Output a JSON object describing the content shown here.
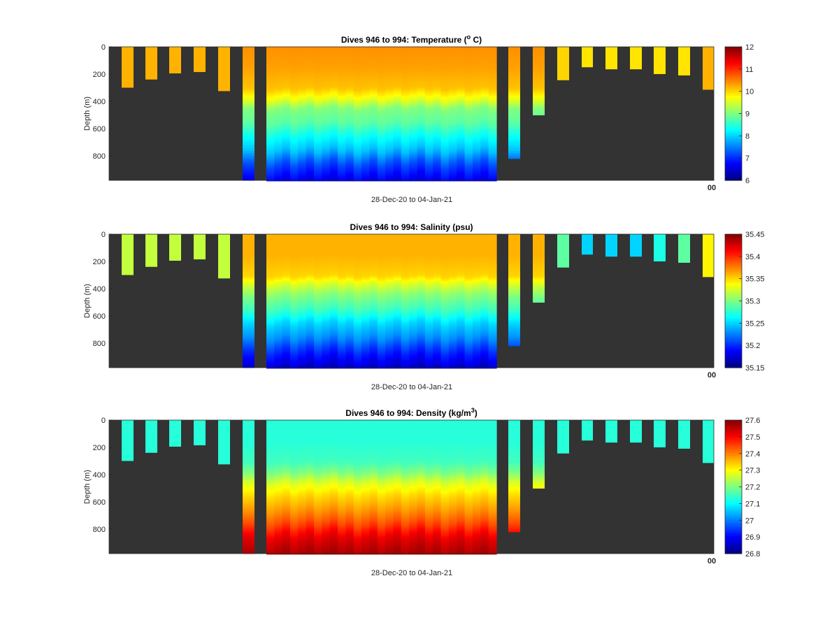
{
  "chart_data": [
    {
      "type": "heatmap",
      "title_pre": "Dives 946 to 994: Temperature (",
      "title_sup": "o",
      "title_post": " C)",
      "variable": "temperature",
      "xlabel": "28-Dec-20 to 04-Jan-21",
      "ylabel": "Depth (m)",
      "ylim": [
        0,
        980
      ],
      "yticks": [
        "0",
        "200",
        "400",
        "600",
        "800"
      ],
      "corner_label": "00",
      "clim": [
        6,
        12
      ],
      "cticks": [
        "6",
        "7",
        "8",
        "9",
        "10",
        "11",
        "12"
      ],
      "colormap": "jet",
      "background": "#333333"
    },
    {
      "type": "heatmap",
      "title_pre": "Dives 946 to 994: Salinity (psu)",
      "title_sup": "",
      "title_post": "",
      "variable": "salinity",
      "xlabel": "28-Dec-20 to 04-Jan-21",
      "ylabel": "Depth (m)",
      "ylim": [
        0,
        980
      ],
      "yticks": [
        "0",
        "200",
        "400",
        "600",
        "800"
      ],
      "corner_label": "00",
      "clim": [
        35.15,
        35.45
      ],
      "cticks": [
        "35.15",
        "35.2",
        "35.25",
        "35.3",
        "35.35",
        "35.4",
        "35.45"
      ],
      "colormap": "jet",
      "background": "#333333"
    },
    {
      "type": "heatmap",
      "title_pre": "Dives 946 to 994: Density (kg/m",
      "title_sup": "3",
      "title_post": ")",
      "variable": "density",
      "xlabel": "28-Dec-20 to 04-Jan-21",
      "ylabel": "Depth (m)",
      "ylim": [
        0,
        980
      ],
      "yticks": [
        "0",
        "200",
        "400",
        "600",
        "800"
      ],
      "corner_label": "00",
      "clim": [
        26.8,
        27.6
      ],
      "cticks": [
        "26.8",
        "26.9",
        "27",
        "27.1",
        "27.2",
        "27.3",
        "27.4",
        "27.5",
        "27.6"
      ],
      "colormap": "jet",
      "background": "#333333"
    }
  ],
  "dives": [
    {
      "depth": 300,
      "temperature": 10.2,
      "salinity": 35.32,
      "density": 27.13
    },
    {
      "depth": 240,
      "temperature": 10.2,
      "salinity": 35.32,
      "density": 27.13
    },
    {
      "depth": 195,
      "temperature": 10.2,
      "salinity": 35.32,
      "density": 27.13
    },
    {
      "depth": 185,
      "temperature": 10.2,
      "salinity": 35.32,
      "density": 27.13
    },
    {
      "depth": 325,
      "temperature": 10.2,
      "salinity": 35.32,
      "density": 27.13
    },
    {
      "depth": 980,
      "temperature": 10.2,
      "salinity": 35.34,
      "density": 27.13,
      "profile": true
    },
    {
      "depth": 980,
      "profile": true,
      "main": true
    },
    {
      "depth": 820,
      "temperature": 10.2,
      "salinity": 35.34,
      "density": 27.13,
      "profile": true
    },
    {
      "depth": 500,
      "temperature": 10.2,
      "salinity": 35.34,
      "density": 27.13,
      "profile": true
    },
    {
      "depth": 245,
      "temperature": 10.0,
      "salinity": 35.29,
      "density": 27.13
    },
    {
      "depth": 150,
      "temperature": 9.9,
      "salinity": 35.25,
      "density": 27.13
    },
    {
      "depth": 165,
      "temperature": 9.9,
      "salinity": 35.25,
      "density": 27.13
    },
    {
      "depth": 165,
      "temperature": 9.9,
      "salinity": 35.25,
      "density": 27.13
    },
    {
      "depth": 200,
      "temperature": 9.9,
      "salinity": 35.27,
      "density": 27.13
    },
    {
      "depth": 210,
      "temperature": 9.9,
      "salinity": 35.29,
      "density": 27.13
    },
    {
      "depth": 315,
      "temperature": 10.2,
      "salinity": 35.34,
      "density": 27.13
    }
  ],
  "profiles": {
    "depth": [
      0,
      150,
      300,
      380,
      450,
      550,
      650,
      750,
      850,
      980
    ],
    "temperature": [
      10.4,
      10.3,
      10.1,
      9.6,
      9.0,
      8.8,
      8.3,
      7.9,
      7.2,
      6.6
    ],
    "salinity": [
      35.36,
      35.36,
      35.35,
      35.32,
      35.3,
      35.28,
      35.25,
      35.23,
      35.2,
      35.17
    ],
    "density": [
      27.13,
      27.13,
      27.15,
      27.2,
      27.27,
      27.33,
      27.38,
      27.44,
      27.52,
      27.57
    ]
  }
}
